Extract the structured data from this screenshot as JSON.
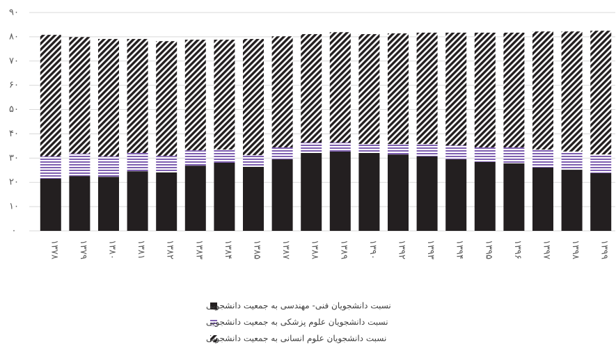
{
  "chart_data": {
    "type": "stacked_bar",
    "categories": [
      "۱۳۷۸",
      "۱۳۷۹",
      "۱۳۸۰",
      "۱۳۸۱",
      "۱۳۸۲",
      "۱۳۸۳",
      "۱۳۸۴",
      "۱۳۸۵",
      "۱۳۸۷",
      "۱۳۸۸",
      "۱۳۸۹",
      "۱۳۹۰",
      "۱۳۹۲",
      "۱۳۹۳",
      "۱۳۹۴",
      "۱۳۹۵",
      "۱۳۹۶",
      "۱۳۹۷",
      "۱۳۹۸",
      "۱۳۹۹"
    ],
    "series": [
      {
        "name": "نسبت دانشجویان فنی- مهندسی به جمعیت دانشجویی",
        "color": "#231f20",
        "pattern": "solid",
        "values": [
          21.5,
          22.6,
          22.3,
          24.6,
          24.1,
          26.9,
          28.1,
          26.4,
          29.5,
          32.1,
          32.7,
          32.1,
          31.5,
          30.7,
          29.5,
          28.4,
          27.8,
          26.1,
          25.2,
          23.8
        ]
      },
      {
        "name": "نسبت دانشجویان علوم پزشکی به جمعیت دانشجویی",
        "color": "#7e5fb0",
        "pattern": "horizontal",
        "values": [
          9.2,
          9.2,
          8.4,
          7.5,
          6.8,
          6.3,
          5.4,
          4.8,
          4.9,
          4.3,
          3.7,
          3.7,
          4.3,
          5.1,
          5.7,
          6.0,
          6.6,
          7.4,
          7.5,
          7.7
        ]
      },
      {
        "name": "نسبت دانشجویان علوم انسانی  به جمعیت دانشجویی",
        "color": "#231f20",
        "pattern": "diagonal",
        "values": [
          50.1,
          48.1,
          48.4,
          47.0,
          47.3,
          45.6,
          45.3,
          47.9,
          45.8,
          44.7,
          45.5,
          45.3,
          45.6,
          45.9,
          46.5,
          47.3,
          47.3,
          48.7,
          49.5,
          51.0
        ]
      }
    ],
    "ylim": [
      0,
      90
    ],
    "yticks": [
      {
        "value": 0,
        "label": "۰"
      },
      {
        "value": 10,
        "label": "۱۰"
      },
      {
        "value": 20,
        "label": "۲۰"
      },
      {
        "value": 30,
        "label": "۳۰"
      },
      {
        "value": 40,
        "label": "۴۰"
      },
      {
        "value": 50,
        "label": "۵۰"
      },
      {
        "value": 60,
        "label": "۶۰"
      },
      {
        "value": 70,
        "label": "۷۰"
      },
      {
        "value": 80,
        "label": "۸۰"
      },
      {
        "value": 90,
        "label": "۹۰"
      }
    ],
    "grid": true,
    "legend": "bottom"
  }
}
